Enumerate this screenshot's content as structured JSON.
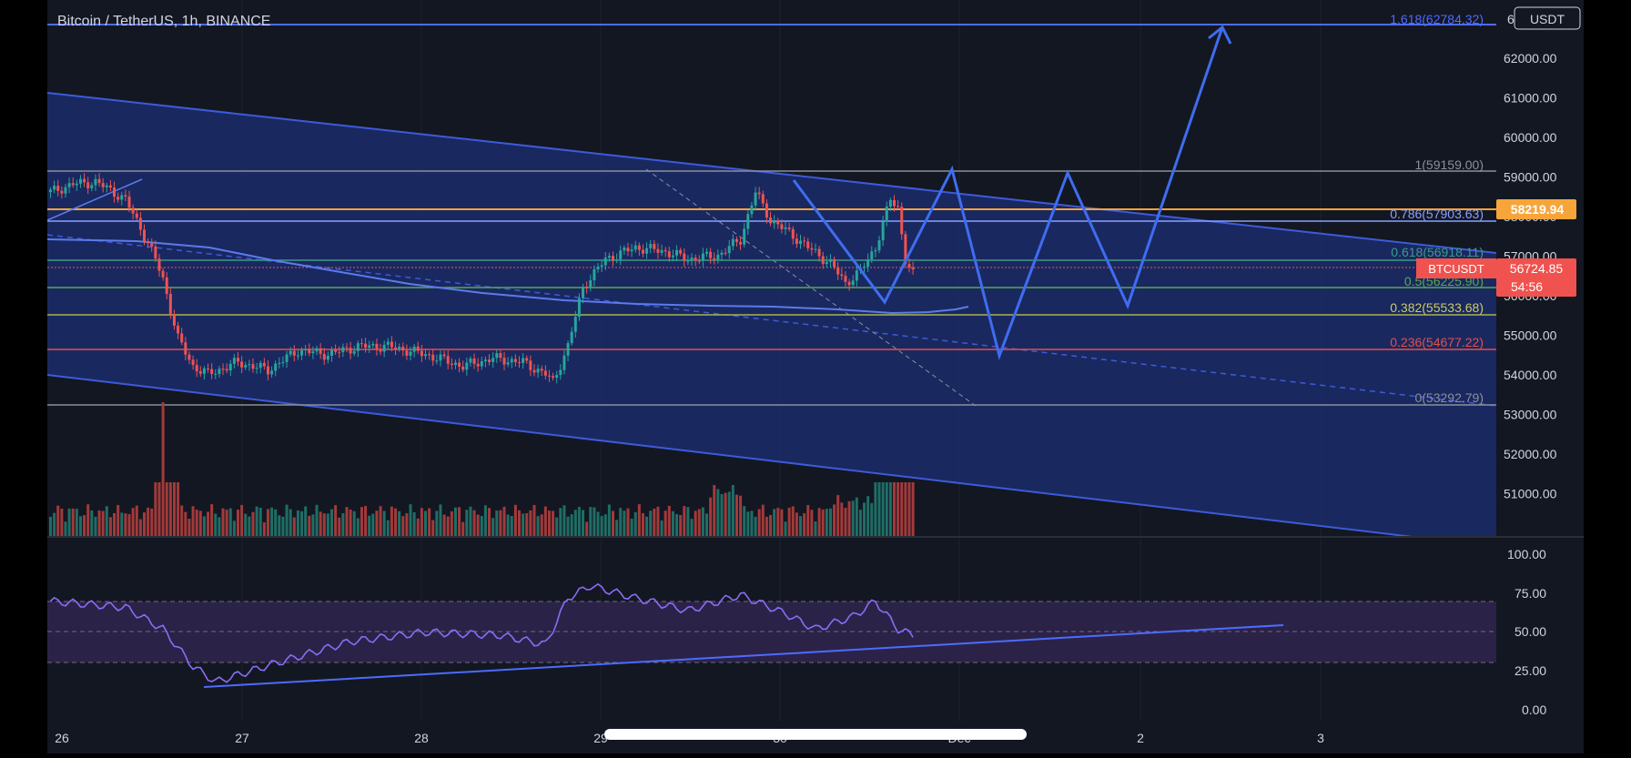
{
  "header": {
    "symbol_title": "Bitcoin / TetherUS, 1h, BINANCE",
    "currency_badge": "USDT"
  },
  "colors": {
    "background": "#131722",
    "channel_fill": "#1c2b6b",
    "channel_line": "#3d5bd9",
    "projection_line": "#3f6df0",
    "candle_up": "#26a69a",
    "candle_down": "#ef5350",
    "volume_up": "#1f6e66",
    "volume_down": "#a33a3a",
    "price_label_orange": "#f7a53a",
    "price_label_red": "#f0524f",
    "rsi_line": "#8b6cf7",
    "rsi_band": "#2a2347"
  },
  "price_axis": {
    "top_label": "6",
    "labels": [
      "62000.00",
      "61000.00",
      "60000.00",
      "59000.00",
      "58000.00",
      "57000.00",
      "56000.00",
      "55000.00",
      "54000.00",
      "53000.00",
      "52000.00",
      "51000.00"
    ]
  },
  "fib_levels": [
    {
      "ratio": "1.618",
      "value": "62784.32",
      "label": "1.618(62784.32)",
      "color": "#4d6bff"
    },
    {
      "ratio": "1",
      "value": "59159.00",
      "label": "1(59159.00)",
      "color": "#8a8f9c"
    },
    {
      "ratio": "0.786",
      "value": "57903.63",
      "label": "0.786(57903.63)",
      "color": "#8aa0ff"
    },
    {
      "ratio": "0.618",
      "value": "56918.11",
      "label": "0.618(56918.11)",
      "color": "#3a9c84"
    },
    {
      "ratio": "0.5",
      "value": "56225.90",
      "label": "0.5(56225.90)",
      "color": "#57a94e"
    },
    {
      "ratio": "0.382",
      "value": "55533.68",
      "label": "0.382(55533.68)",
      "color": "#a8b44a"
    },
    {
      "ratio": "0.236",
      "value": "54677.22",
      "label": "0.236(54677.22)",
      "color": "#e0504d"
    },
    {
      "ratio": "0",
      "value": "53292.79",
      "label": "0(53292.79)",
      "color": "#8a8f9c"
    }
  ],
  "price_tags": {
    "horizontal_level": "58219.94",
    "ticker": "BTCUSDT",
    "last_price": "56724.85",
    "countdown": "54:56"
  },
  "rsi_axis": {
    "labels": [
      "100.00",
      "75.00",
      "50.00",
      "25.00",
      "0.00"
    ]
  },
  "time_axis": {
    "labels": [
      "26",
      "27",
      "28",
      "29",
      "30",
      "Dec",
      "2",
      "3"
    ]
  }
}
